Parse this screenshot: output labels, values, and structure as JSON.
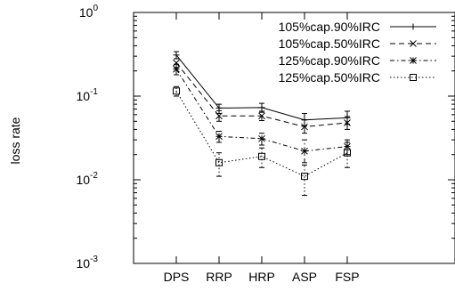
{
  "chart_data": {
    "type": "line",
    "title": "",
    "xlabel": "",
    "ylabel": "loss rate",
    "y_scale": "log",
    "ylim": [
      0.001,
      1
    ],
    "y_ticks": [
      {
        "value": 1,
        "base": "10",
        "exp": "0"
      },
      {
        "value": 0.1,
        "base": "10",
        "exp": "-1"
      },
      {
        "value": 0.01,
        "base": "10",
        "exp": "-2"
      },
      {
        "value": 0.001,
        "base": "10",
        "exp": "-3"
      }
    ],
    "categories": [
      "DPS",
      "RRP",
      "HRP",
      "ASP",
      "FSP"
    ],
    "legend_position": "top-right",
    "grid": false,
    "series": [
      {
        "name": "105%cap.90%IRC",
        "marker": "plus",
        "dash": "solid",
        "values": [
          0.31,
          0.072,
          0.073,
          0.052,
          0.055
        ],
        "err_low": [
          0.28,
          0.062,
          0.064,
          0.044,
          0.046
        ],
        "err_high": [
          0.34,
          0.08,
          0.082,
          0.062,
          0.066
        ]
      },
      {
        "name": "105%cap.50%IRC",
        "marker": "x",
        "dash": "dashed",
        "values": [
          0.25,
          0.058,
          0.058,
          0.043,
          0.048
        ],
        "err_low": [
          0.22,
          0.05,
          0.051,
          0.036,
          0.04
        ],
        "err_high": [
          0.28,
          0.067,
          0.066,
          0.052,
          0.057
        ]
      },
      {
        "name": "125%cap.90%IRC",
        "marker": "star",
        "dash": "dash-dot",
        "values": [
          0.21,
          0.033,
          0.031,
          0.022,
          0.025
        ],
        "err_low": [
          0.18,
          0.028,
          0.026,
          0.016,
          0.02
        ],
        "err_high": [
          0.24,
          0.038,
          0.036,
          0.03,
          0.03
        ]
      },
      {
        "name": "125%cap.50%IRC",
        "marker": "square",
        "dash": "dotted",
        "values": [
          0.115,
          0.016,
          0.019,
          0.011,
          0.021
        ],
        "err_low": [
          0.1,
          0.011,
          0.014,
          0.0065,
          0.014
        ],
        "err_high": [
          0.13,
          0.021,
          0.024,
          0.015,
          0.028
        ]
      }
    ]
  }
}
